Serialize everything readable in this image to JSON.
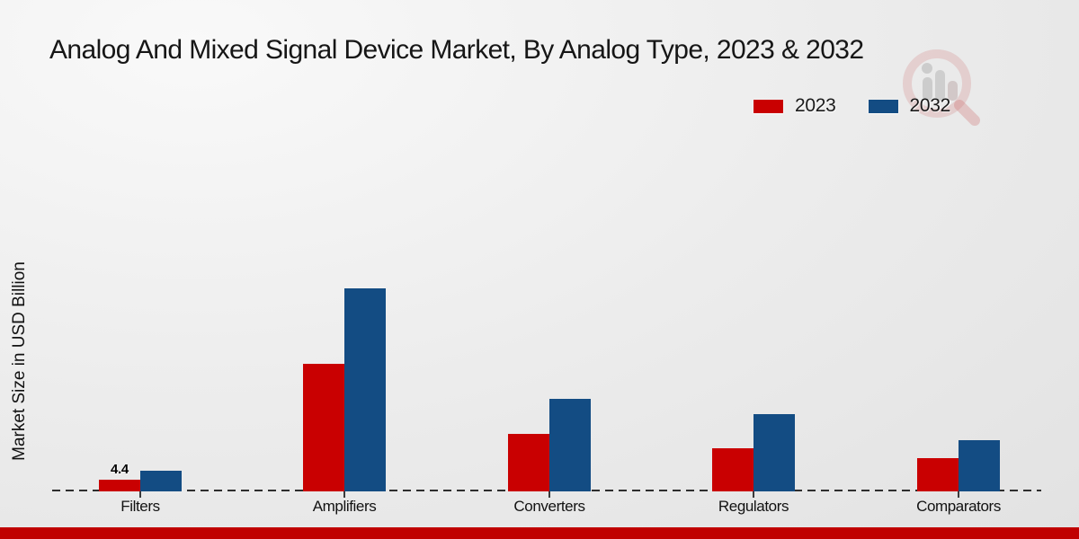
{
  "page": {
    "background_color_top": "#f9f9f9",
    "background_color_bottom": "#e2e2e2",
    "footer_bar_color": "#c00000"
  },
  "chart_data": {
    "type": "bar",
    "title": "Analog And Mixed Signal Device Market, By Analog Type, 2023 & 2032",
    "ylabel": "Market Size in USD Billion",
    "xlabel": "",
    "categories": [
      "Filters",
      "Amplifiers",
      "Converters",
      "Regulators",
      "Comparators"
    ],
    "series": [
      {
        "name": "2023",
        "color": "#c90001",
        "values": [
          4.4,
          46.4,
          21.0,
          15.8,
          12.2
        ]
      },
      {
        "name": "2032",
        "color": "#134c83",
        "values": [
          7.5,
          73.8,
          33.7,
          27.9,
          18.7
        ]
      }
    ],
    "ylim": [
      0,
      80
    ],
    "grid": false,
    "axis_baseline_style": "dashed",
    "legend_position": "top-right",
    "shown_value_labels": [
      {
        "series": "2023",
        "category": "Filters",
        "text": "4.4"
      }
    ]
  }
}
